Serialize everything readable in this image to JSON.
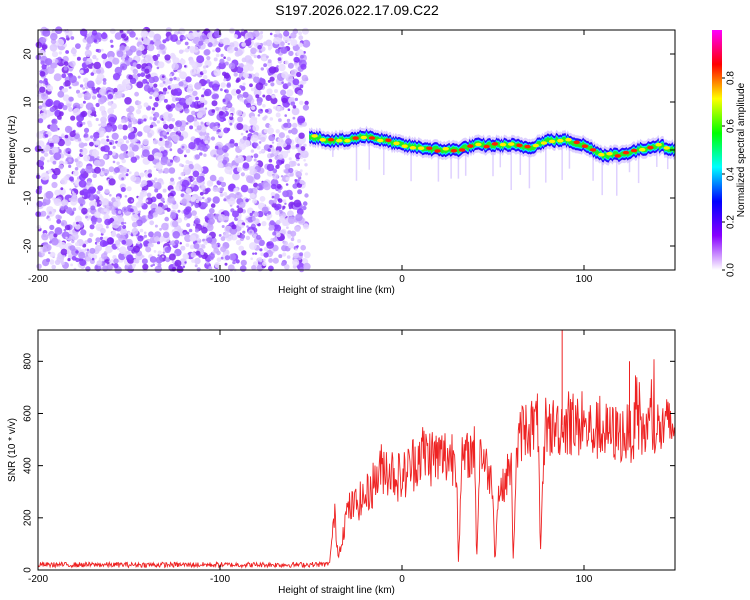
{
  "title": "S197.2026.022.17.09.C22",
  "chart_data": [
    {
      "type": "heatmap",
      "xlabel": "Height of straight line (km)",
      "ylabel": "Frequency (Hz)",
      "xlim": [
        -200,
        150
      ],
      "ylim": [
        -25,
        25
      ],
      "xticks": [
        -200,
        -100,
        0,
        100
      ],
      "xtick_labels": [
        "-200",
        "-100",
        "0",
        "100"
      ],
      "yticks": [
        -20,
        -10,
        0,
        10,
        20
      ],
      "ytick_labels": [
        "-20",
        "-10",
        "0",
        "10",
        "20"
      ],
      "colorbar": {
        "label": "Normalized spectral amplitude",
        "range": [
          0,
          1
        ],
        "ticks": [
          0.0,
          0.2,
          0.4,
          0.6,
          0.8
        ],
        "tick_labels": [
          "0.0",
          "0.2",
          "0.4",
          "0.6",
          "0.8"
        ],
        "colormap": [
          "#ffffff",
          "#8800ff",
          "#0000ff",
          "#00ffff",
          "#00ff00",
          "#ffff00",
          "#ff0000",
          "#ff00ff"
        ]
      },
      "noise_region_x": [
        -200,
        -52
      ],
      "signal_region_x": [
        -52,
        150
      ],
      "ridge": {
        "x": [
          -52,
          -40,
          -30,
          -20,
          -10,
          0,
          10,
          20,
          30,
          40,
          50,
          60,
          70,
          80,
          90,
          100,
          110,
          120,
          130,
          140,
          150
        ],
        "freq": [
          3,
          2,
          2,
          3,
          2,
          1,
          0.5,
          0,
          0,
          1,
          1,
          1,
          0.5,
          2,
          2,
          1,
          -1,
          -1,
          0,
          1,
          0
        ]
      },
      "grid": false
    },
    {
      "type": "line",
      "xlabel": "Height of straight line (km)",
      "ylabel": "SNR (10 * v/v)",
      "xlim": [
        -200,
        150
      ],
      "ylim": [
        0,
        920
      ],
      "xticks": [
        -200,
        -100,
        0,
        100
      ],
      "xtick_labels": [
        "-200",
        "-100",
        "0",
        "100"
      ],
      "yticks": [
        0,
        200,
        400,
        600,
        800
      ],
      "ytick_labels": [
        "0",
        "200",
        "400",
        "600",
        "800"
      ],
      "line_color": "#ee2222",
      "series": [
        {
          "name": "SNR",
          "x": [
            -200,
            -150,
            -100,
            -60,
            -40,
            -37,
            -35,
            -30,
            -20,
            -10,
            0,
            10,
            20,
            30,
            31,
            33,
            40,
            41,
            43,
            45,
            50,
            51,
            53,
            55,
            60,
            61,
            63,
            66,
            75,
            76,
            78,
            80,
            90,
            100,
            120,
            150
          ],
          "y": [
            20,
            20,
            20,
            20,
            22,
            210,
            50,
            230,
            280,
            400,
            350,
            450,
            430,
            440,
            30,
            420,
            460,
            30,
            480,
            420,
            330,
            30,
            300,
            310,
            410,
            30,
            440,
            540,
            560,
            30,
            500,
            540,
            560,
            540,
            520,
            550
          ]
        }
      ],
      "annotations": [
        {
          "x": 88,
          "y": 920,
          "label": ""
        },
        {
          "x": 125,
          "y": 800,
          "label": ""
        }
      ],
      "grid": false
    }
  ]
}
